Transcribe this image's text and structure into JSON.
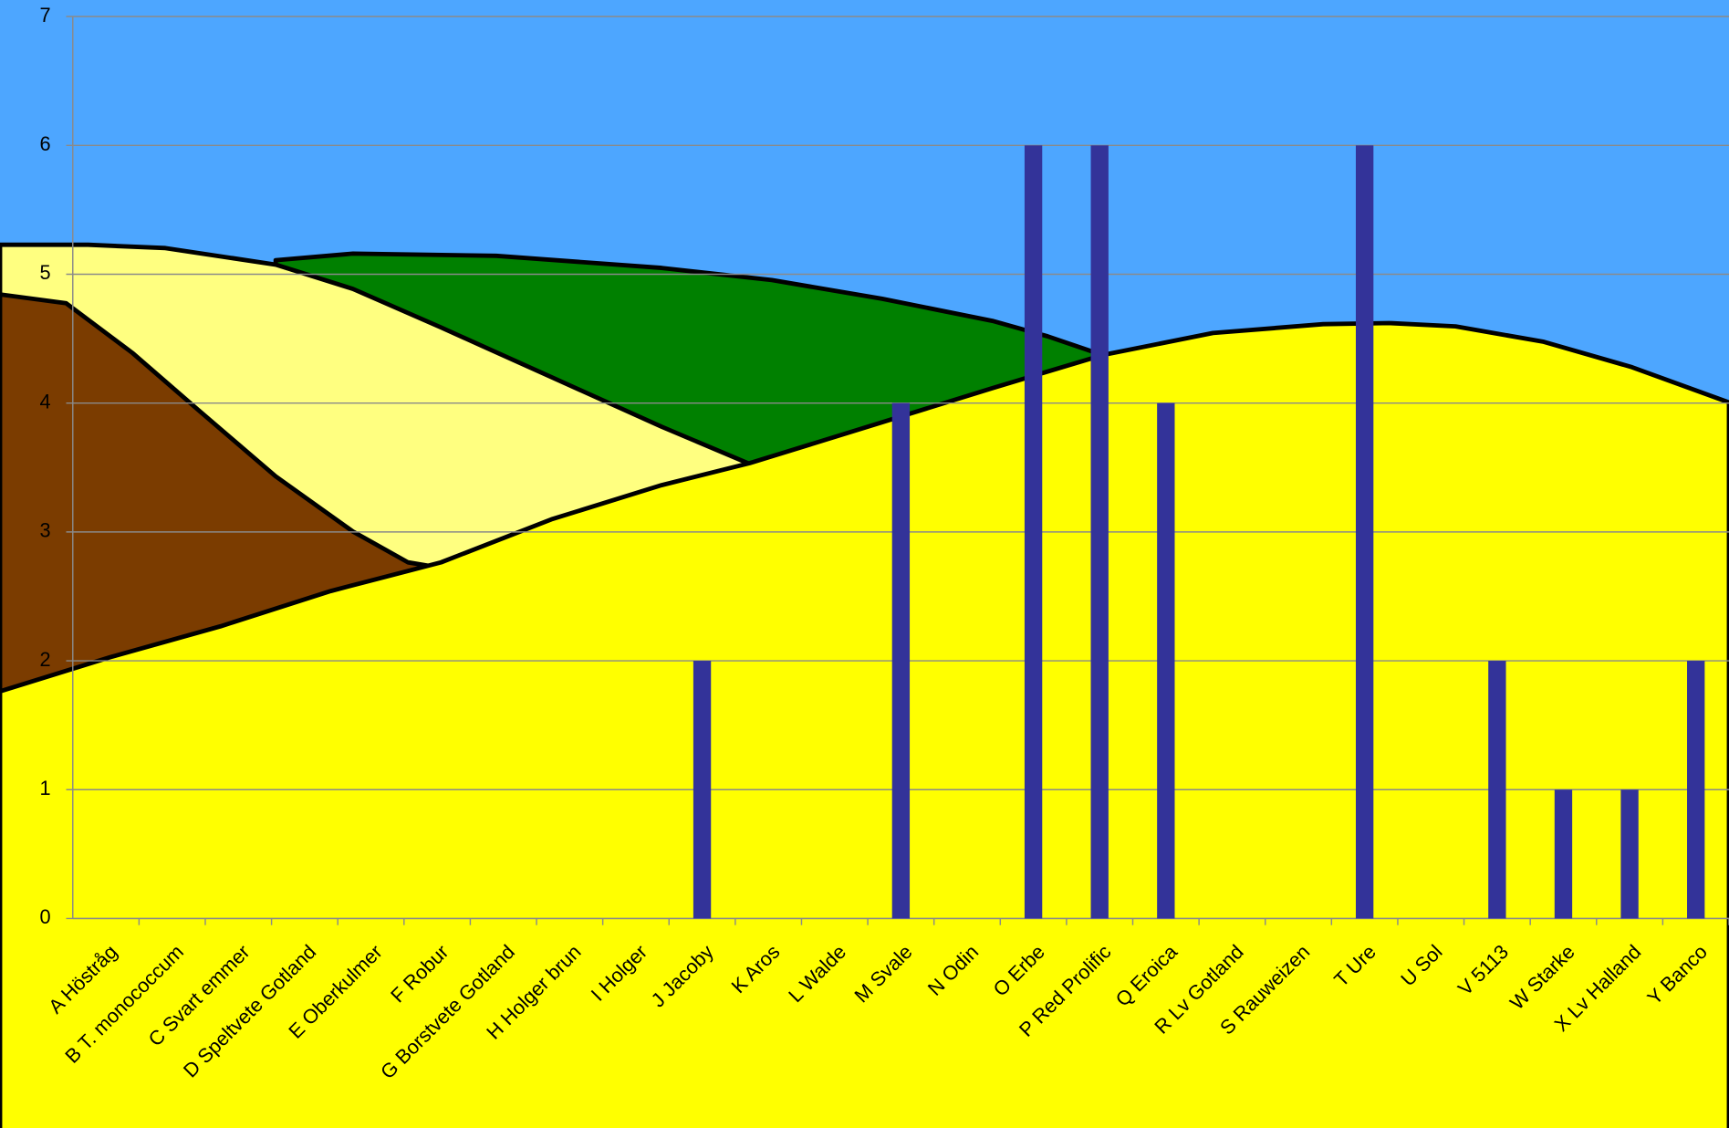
{
  "chart_data": {
    "type": "bar",
    "categories": [
      "A Höstråg",
      "B T. monococcum",
      "C Svart emmer",
      "D Speltvete Gotland",
      "E Oberkulmer",
      "F Robur",
      "G Borstvete Gotland",
      "H Holger brun",
      "I Holger",
      "J Jacoby",
      "K Aros",
      "L Walde",
      "M Svale",
      "N Odin",
      "O Erbe",
      "P Red Prolific",
      "Q Eroica",
      "R Lv Gotland",
      "S Rauweizen",
      "T Ure",
      "U Sol",
      "V 5113",
      "W Starke",
      "X Lv Halland",
      "Y Banco"
    ],
    "values": [
      0,
      0,
      0,
      0,
      0,
      0,
      0,
      0,
      0,
      2,
      0,
      0,
      4,
      0,
      6,
      6,
      4,
      0,
      0,
      6,
      0,
      2,
      1,
      1,
      2
    ],
    "color": "#333399",
    "ylim": [
      0,
      7
    ],
    "yticks": [
      0,
      1,
      2,
      3,
      4,
      5,
      6,
      7
    ],
    "grid": true
  }
}
